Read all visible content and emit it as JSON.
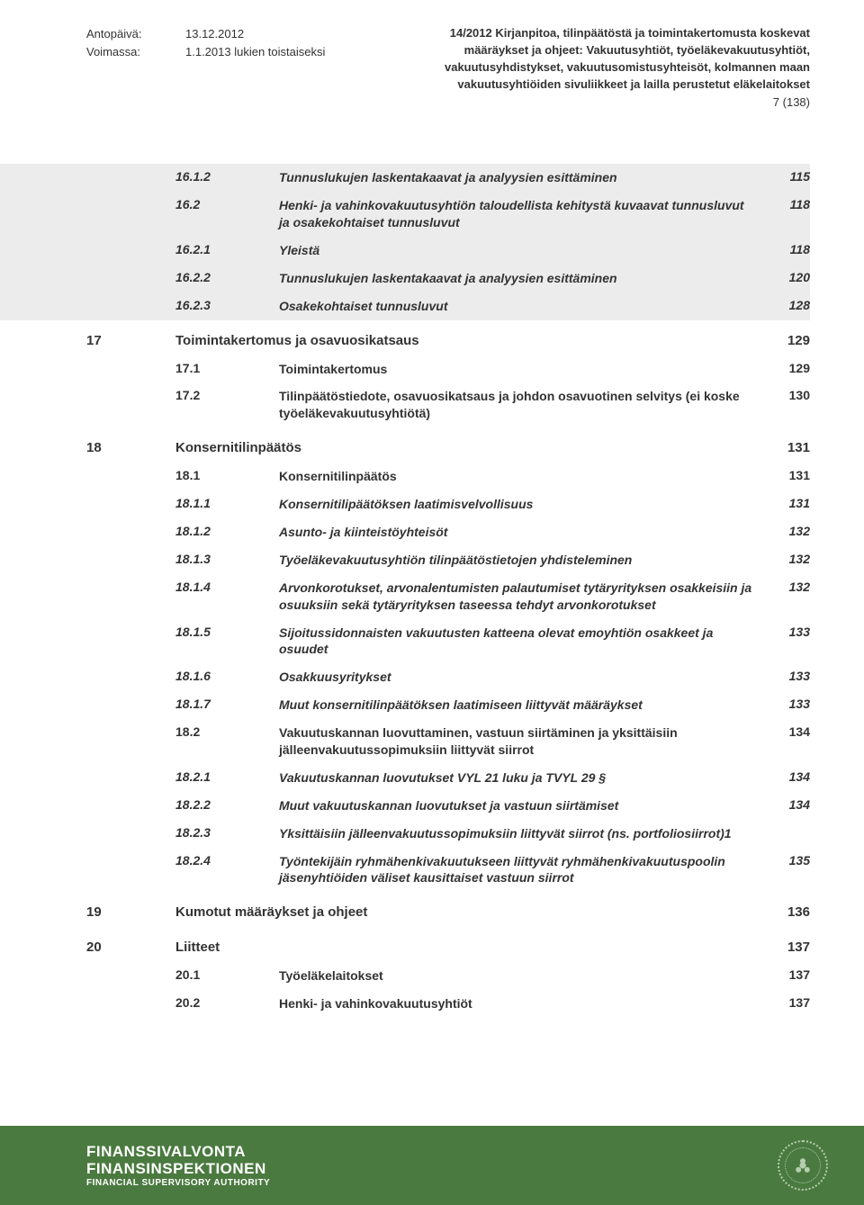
{
  "header": {
    "issue_label": "Antopäivä:",
    "issue_date": "13.12.2012",
    "valid_label": "Voimassa:",
    "valid_value": "1.1.2013 lukien toistaiseksi",
    "title_lines": [
      "14/2012 Kirjanpitoa, tilinpäätöstä ja toimintakertomusta koskevat",
      "määräykset ja ohjeet: Vakuutusyhtiöt, työeläkevakuutusyhtiöt,",
      "vakuutusyhdistykset, vakuutusomistusyhteisöt, kolmannen maan",
      "vakuutusyhtiöiden sivuliikkeet ja lailla perustetut eläkelaitokset"
    ],
    "page_marker": "7 (138)"
  },
  "toc": [
    {
      "chapter": "",
      "num": "16.1.2",
      "title": "Tunnuslukujen laskentakaavat ja analyysien esittäminen",
      "page": "115",
      "style": "italic",
      "band": "gray"
    },
    {
      "chapter": "",
      "num": "16.2",
      "title": "Henki- ja vahinkovakuutusyhtiön taloudellista kehitystä kuvaavat tunnusluvut ja osakekohtaiset tunnusluvut",
      "page": "118",
      "style": "italic",
      "band": "gray"
    },
    {
      "chapter": "",
      "num": "16.2.1",
      "title": "Yleistä",
      "page": "118",
      "style": "italic",
      "band": "gray"
    },
    {
      "chapter": "",
      "num": "16.2.2",
      "title": "Tunnuslukujen laskentakaavat ja analyysien esittäminen",
      "page": "120",
      "style": "italic",
      "band": "gray"
    },
    {
      "chapter": "",
      "num": "16.2.3",
      "title": "Osakekohtaiset tunnusluvut",
      "page": "128",
      "style": "italic",
      "band": "gray"
    },
    {
      "chapter": "17",
      "num": "",
      "title": "Toimintakertomus ja osavuosikatsaus",
      "page": "129",
      "style": "section",
      "band": ""
    },
    {
      "chapter": "",
      "num": "17.1",
      "title": "Toimintakertomus",
      "page": "129",
      "style": "bold",
      "band": ""
    },
    {
      "chapter": "",
      "num": "17.2",
      "title": "Tilinpäätöstiedote, osavuosikatsaus ja johdon osavuotinen selvitys (ei koske työeläkevakuutusyhtiötä)",
      "page": "130",
      "style": "bold",
      "band": ""
    },
    {
      "chapter": "18",
      "num": "",
      "title": "Konsernitilinpäätös",
      "page": "131",
      "style": "section",
      "band": ""
    },
    {
      "chapter": "",
      "num": "18.1",
      "title": "Konsernitilinpäätös",
      "page": "131",
      "style": "bold",
      "band": ""
    },
    {
      "chapter": "",
      "num": "18.1.1",
      "title": "Konsernitilipäätöksen laatimisvelvollisuus",
      "page": "131",
      "style": "italic",
      "band": ""
    },
    {
      "chapter": "",
      "num": "18.1.2",
      "title": "Asunto- ja kiinteistöyhteisöt",
      "page": "132",
      "style": "italic",
      "band": ""
    },
    {
      "chapter": "",
      "num": "18.1.3",
      "title": "Työeläkevakuutusyhtiön tilinpäätöstietojen yhdisteleminen",
      "page": "132",
      "style": "italic",
      "band": ""
    },
    {
      "chapter": "",
      "num": "18.1.4",
      "title": "Arvonkorotukset, arvonalentumisten palautumiset tytäryrityksen osakkeisiin ja osuuksiin sekä tytäryrityksen taseessa tehdyt arvonkorotukset",
      "page": "132",
      "style": "italic",
      "band": ""
    },
    {
      "chapter": "",
      "num": "18.1.5",
      "title": "Sijoitussidonnaisten vakuutusten katteena olevat emoyhtiön osakkeet ja osuudet",
      "page": "133",
      "style": "italic",
      "band": ""
    },
    {
      "chapter": "",
      "num": "18.1.6",
      "title": "Osakkuusyritykset",
      "page": "133",
      "style": "italic",
      "band": ""
    },
    {
      "chapter": "",
      "num": "18.1.7",
      "title": "Muut konsernitilinpäätöksen laatimiseen liittyvät määräykset",
      "page": "133",
      "style": "italic",
      "band": ""
    },
    {
      "chapter": "",
      "num": "18.2",
      "title": "Vakuutuskannan luovuttaminen, vastuun siirtäminen ja yksittäisiin jälleenvakuutussopimuksiin liittyvät siirrot",
      "page": "134",
      "style": "bold",
      "band": ""
    },
    {
      "chapter": "",
      "num": "18.2.1",
      "title": "Vakuutuskannan luovutukset VYL 21 luku ja TVYL 29 §",
      "page": "134",
      "style": "italic",
      "band": ""
    },
    {
      "chapter": "",
      "num": "18.2.2",
      "title": "Muut vakuutuskannan luovutukset ja vastuun siirtämiset",
      "page": "134",
      "style": "italic",
      "band": ""
    },
    {
      "chapter": "",
      "num": "18.2.3",
      "title": "Yksittäisiin jälleenvakuutussopimuksiin liittyvät siirrot (ns. portfoliosiirrot)1",
      "page": "",
      "style": "italic",
      "band": ""
    },
    {
      "chapter": "",
      "num": "18.2.4",
      "title": "Työntekijäin ryhmähenkivakuutukseen liittyvät ryhmähenkivakuutuspoolin jäsenyhtiöiden väliset kausittaiset vastuun siirrot",
      "page": "135",
      "style": "italic",
      "band": ""
    },
    {
      "chapter": "19",
      "num": "",
      "title": "Kumotut määräykset ja ohjeet",
      "page": "136",
      "style": "section",
      "band": ""
    },
    {
      "chapter": "20",
      "num": "",
      "title": "Liitteet",
      "page": "137",
      "style": "section",
      "band": ""
    },
    {
      "chapter": "",
      "num": "20.1",
      "title": "Työeläkelaitokset",
      "page": "137",
      "style": "bold",
      "band": ""
    },
    {
      "chapter": "",
      "num": "20.2",
      "title": "Henki- ja vahinkovakuutusyhtiöt",
      "page": "137",
      "style": "bold",
      "band": ""
    }
  ],
  "footer": {
    "line1": "FINANSSIVALVONTA",
    "line2": "FINANSINSPEKTIONEN",
    "line3": "FINANCIAL SUPERVISORY AUTHORITY"
  },
  "colors": {
    "gray_band": "#ececec",
    "footer_bg": "#4a7a3f",
    "text": "#333333"
  }
}
